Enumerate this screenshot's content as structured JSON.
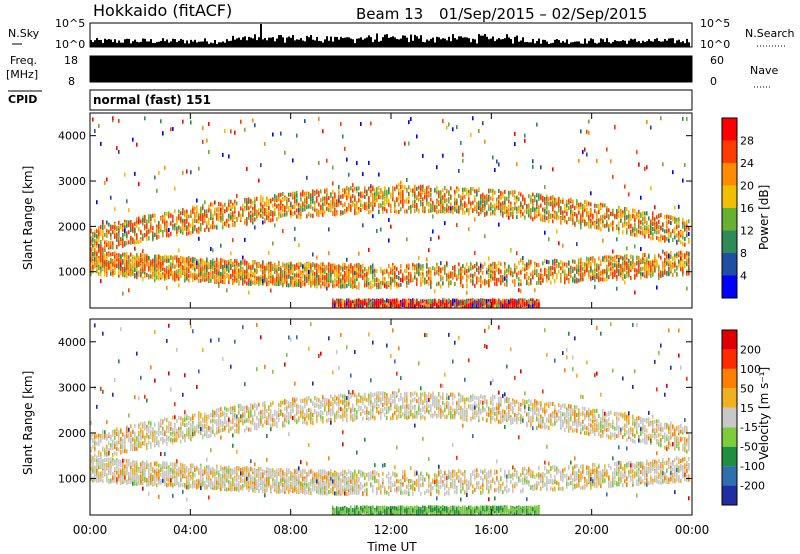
{
  "header": {
    "title": "Hokkaido (fitACF)",
    "beam": "Beam 13",
    "date_range": "01/Sep/2015 – 02/Sep/2015"
  },
  "top_panels": {
    "nsky_label": "N.Sky",
    "nsky_ticks": [
      "10^5",
      "10^0"
    ],
    "nsearch_label": "N.Search",
    "nsearch_ticks": [
      "10^5",
      "10^0"
    ],
    "freq_label": "Freq.",
    "freq_unit": "[MHz]",
    "freq_ticks": [
      "18",
      "8"
    ],
    "nave_label": "Nave",
    "nave_ticks": [
      "60",
      "0"
    ],
    "cpid_label": "CPID",
    "cpid_value": "normal (fast) 151"
  },
  "chart_data": [
    {
      "type": "heatmap",
      "name": "power-panel",
      "ylabel": "Slant Range [km]",
      "y_ticks": [
        "4000",
        "3000",
        "2000",
        "1000"
      ],
      "ylim": [
        200,
        4500
      ],
      "colorbar_label": "Power [dB]",
      "colorbar_ticks": [
        "28",
        "24",
        "20",
        "16",
        "12",
        "8",
        "4"
      ],
      "colors": [
        "#0000ff",
        "#1f4fa3",
        "#2e8b57",
        "#66b032",
        "#f0c000",
        "#ff8c00",
        "#ff3c00",
        "#ff0000"
      ]
    },
    {
      "type": "heatmap",
      "name": "velocity-panel",
      "ylabel": "Slant Range [km]",
      "y_ticks": [
        "4000",
        "3000",
        "2000",
        "1000"
      ],
      "ylim": [
        200,
        4500
      ],
      "colorbar_label": "Velocity [m s⁻¹]",
      "colorbar_ticks": [
        "200",
        "100",
        "50",
        "15",
        "-15",
        "-50",
        "-100",
        "-200"
      ],
      "colors": [
        "#1f2fa0",
        "#2f6fb0",
        "#1f8f3f",
        "#7ccc3c",
        "#c8c8c8",
        "#f0b020",
        "#ff8000",
        "#ff2a00",
        "#e00000"
      ]
    }
  ],
  "x_axis": {
    "ticks": [
      "00:00",
      "04:00",
      "08:00",
      "12:00",
      "16:00",
      "20:00",
      "00:00"
    ],
    "label": "Time UT"
  }
}
